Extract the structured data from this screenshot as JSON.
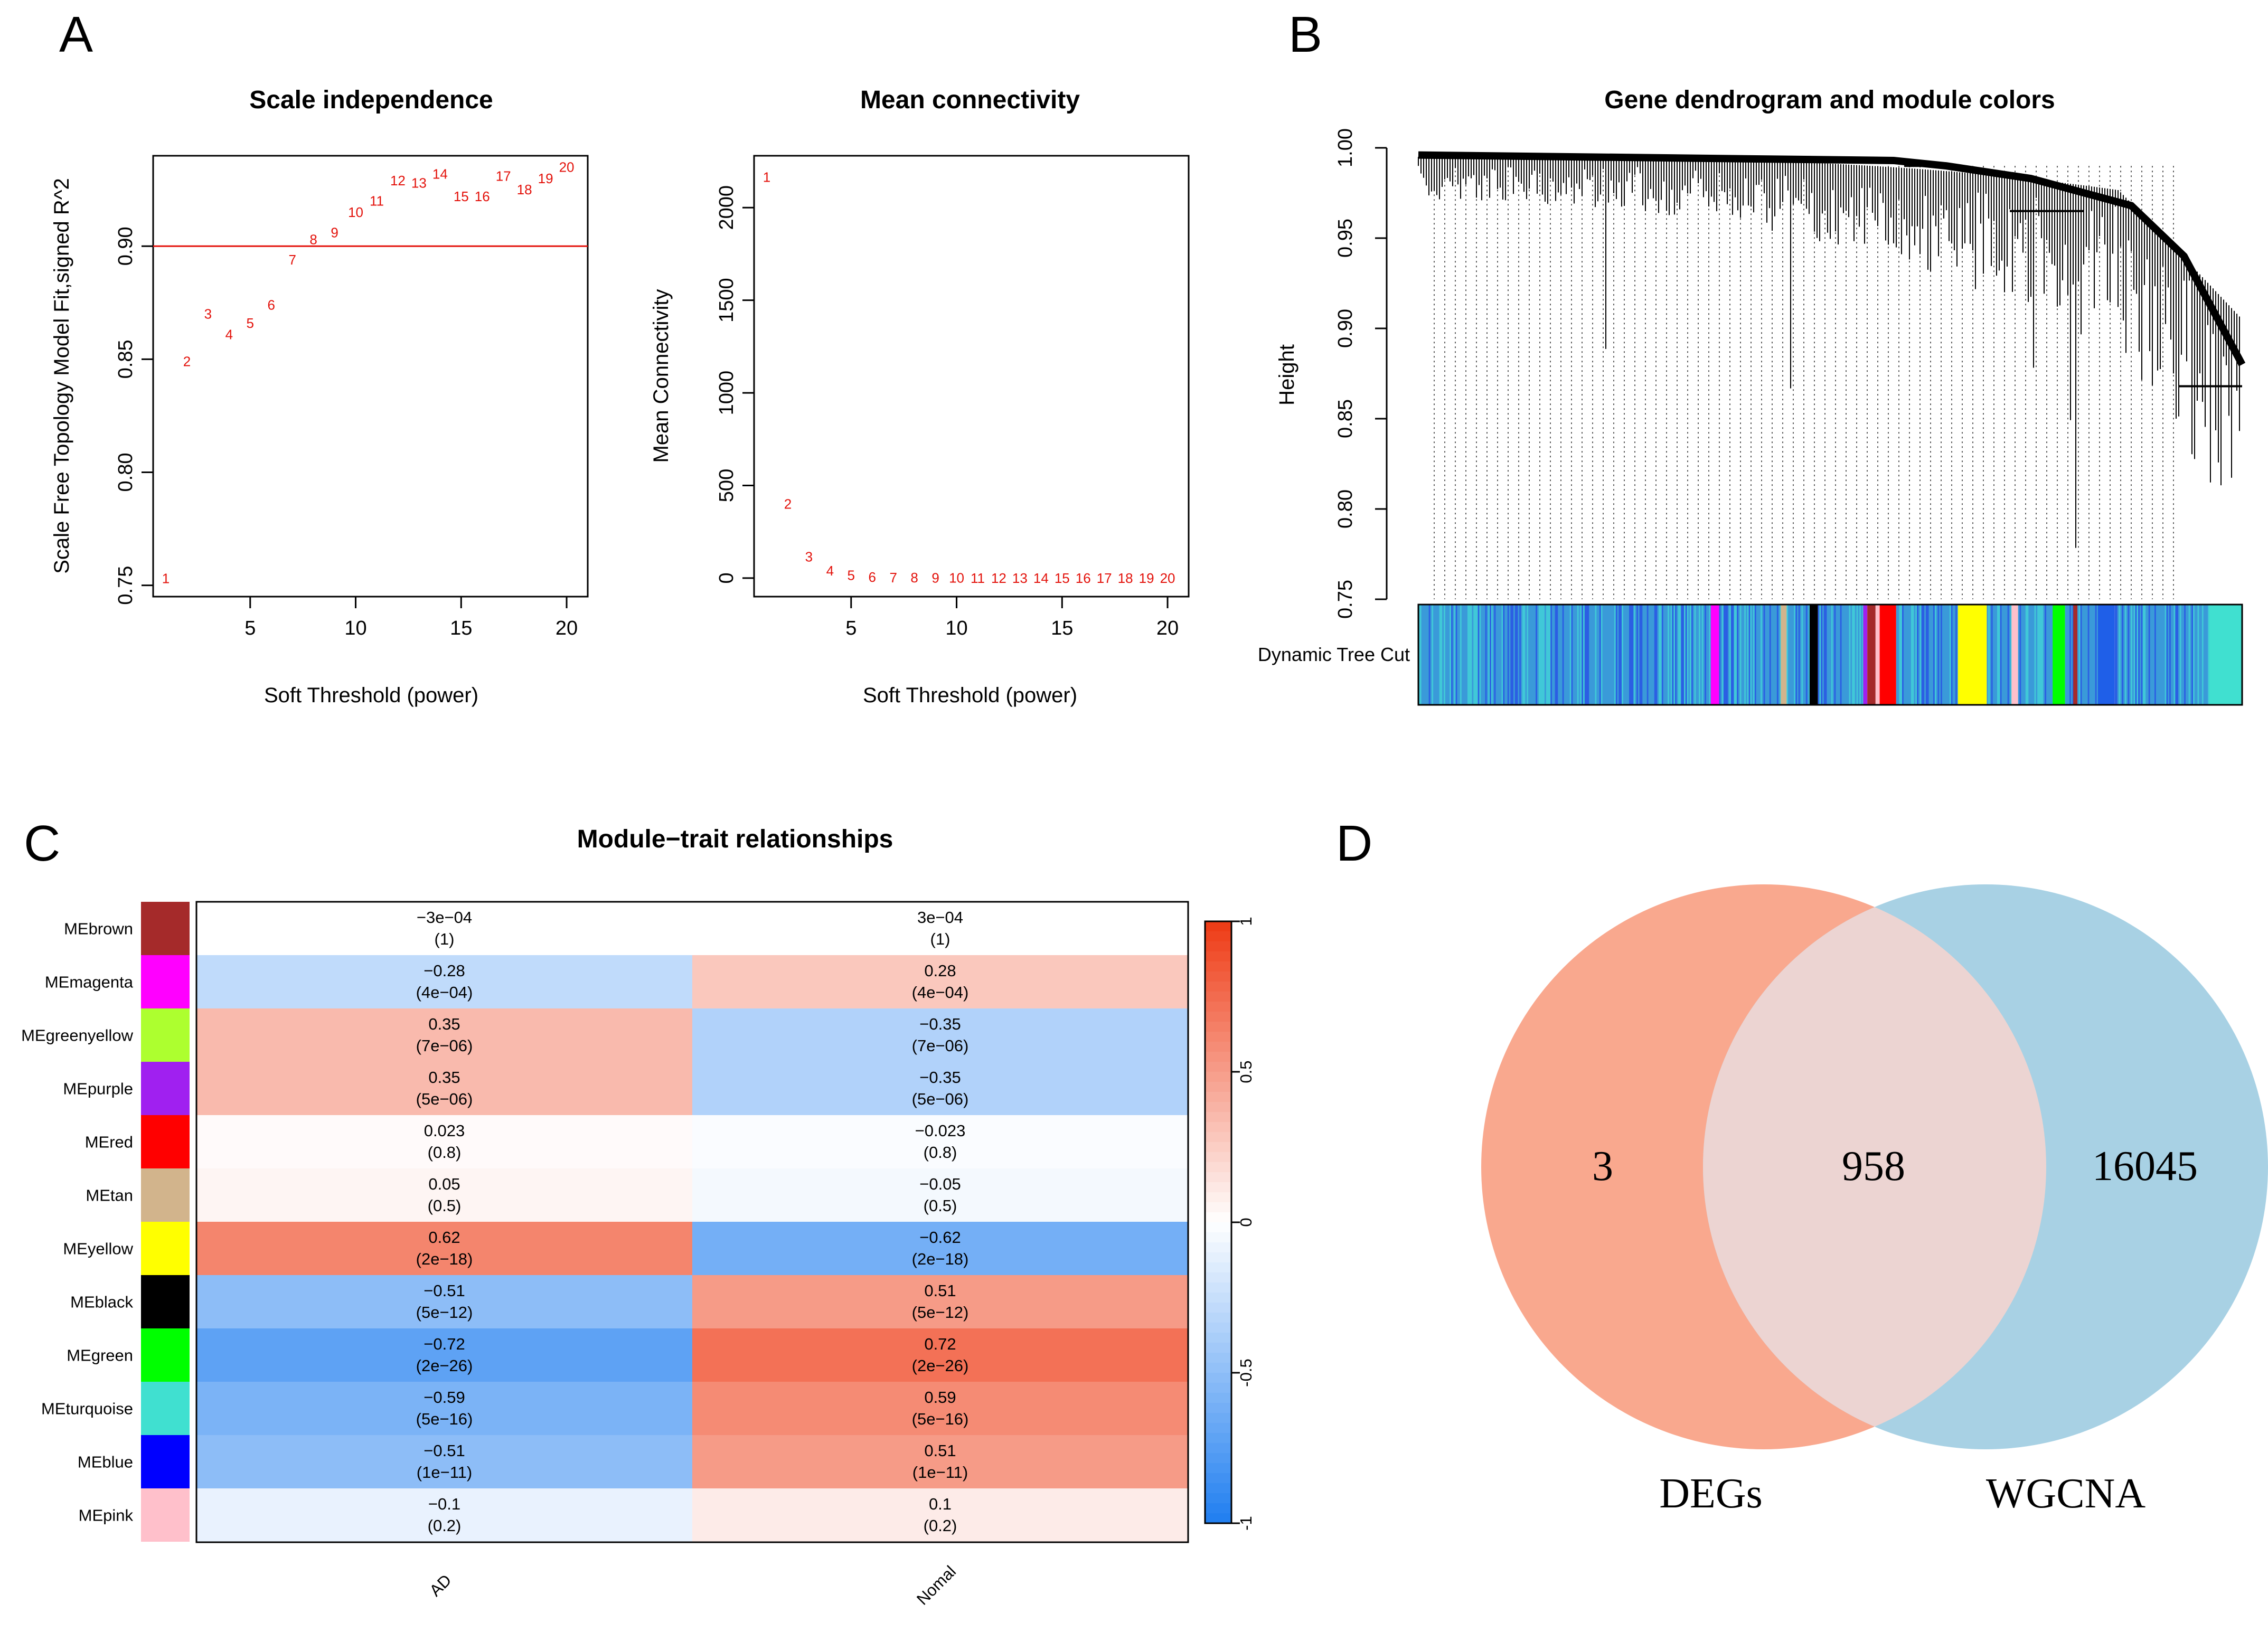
{
  "panels": {
    "a": "A",
    "b": "B",
    "c": "C",
    "d": "D"
  },
  "chart_data": [
    {
      "id": "scale_independence",
      "type": "scatter",
      "title": "Scale independence",
      "xlabel": "Soft Threshold (power)",
      "ylabel": "Scale Free Topology Model Fit,signed R^2",
      "xlim": [
        0.4,
        21.0
      ],
      "ylim": [
        0.745,
        0.94
      ],
      "xticks": [
        5,
        10,
        15,
        20
      ],
      "yticks": [
        0.75,
        0.8,
        0.85,
        0.9
      ],
      "ytick_labels": [
        "0.75",
        "0.80",
        "0.85",
        "0.90"
      ],
      "hline": 0.9,
      "hline_color": "#e3120b",
      "point_color": "#e3120b",
      "x": [
        1,
        2,
        3,
        4,
        5,
        6,
        7,
        8,
        9,
        10,
        11,
        12,
        13,
        14,
        15,
        16,
        17,
        18,
        19,
        20
      ],
      "y": [
        0.753,
        0.849,
        0.87,
        0.861,
        0.866,
        0.874,
        0.894,
        0.903,
        0.906,
        0.915,
        0.92,
        0.929,
        0.928,
        0.932,
        0.922,
        0.922,
        0.931,
        0.925,
        0.93,
        0.935
      ],
      "labels": [
        "1",
        "2",
        "3",
        "4",
        "5",
        "6",
        "7",
        "8",
        "9",
        "10",
        "11",
        "12",
        "13",
        "14",
        "15",
        "16",
        "17",
        "18",
        "19",
        "20"
      ]
    },
    {
      "id": "mean_connectivity",
      "type": "scatter",
      "title": "Mean connectivity",
      "xlabel": "Soft Threshold (power)",
      "ylabel": "Mean Connectivity",
      "xlim": [
        0.4,
        21.0
      ],
      "ylim": [
        -100,
        2280
      ],
      "xticks": [
        5,
        10,
        15,
        20
      ],
      "yticks": [
        0,
        500,
        1000,
        1500,
        2000
      ],
      "ytick_labels": [
        "0",
        "500",
        "1000",
        "1500",
        "2000"
      ],
      "point_color": "#e3120b",
      "x": [
        1,
        2,
        3,
        4,
        5,
        6,
        7,
        8,
        9,
        10,
        11,
        12,
        13,
        14,
        15,
        16,
        17,
        18,
        19,
        20
      ],
      "y": [
        2165,
        400,
        115,
        40,
        15,
        6,
        3,
        2,
        1,
        0.5,
        0.3,
        0.2,
        0.1,
        0.1,
        0.1,
        0.1,
        0.1,
        0.1,
        0.1,
        0.1
      ],
      "labels": [
        "1",
        "2",
        "3",
        "4",
        "5",
        "6",
        "7",
        "8",
        "9",
        "10",
        "11",
        "12",
        "13",
        "14",
        "15",
        "16",
        "17",
        "18",
        "19",
        "20"
      ]
    },
    {
      "id": "gene_dendrogram",
      "type": "dendrogram",
      "title": "Gene dendrogram and module colors",
      "ylabel": "Height",
      "ylim": [
        0.75,
        1.0
      ],
      "yticks": [
        0.75,
        0.8,
        0.85,
        0.9,
        0.95,
        1.0
      ],
      "ytick_labels": [
        "0.75",
        "0.80",
        "0.85",
        "0.90",
        "0.95",
        "1.00"
      ],
      "color_bar_label": "Dynamic Tree Cut",
      "module_colors_in_bar": [
        "turquoise",
        "blue",
        "magenta",
        "greenyellow",
        "tan",
        "black",
        "purple",
        "red",
        "pink",
        "yellow",
        "green",
        "brown"
      ]
    },
    {
      "id": "module_trait",
      "type": "heatmap",
      "title": "Module−trait relationships",
      "columns": [
        "AD",
        "Nomal"
      ],
      "color_scale": {
        "min": -1,
        "max": 1,
        "ticks": [
          "-1",
          "-0.5",
          "0",
          "0.5",
          "1"
        ],
        "low": "#1f7ef0",
        "mid": "#ffffff",
        "high": "#ee3a14"
      },
      "rows": [
        {
          "module": "MEbrown",
          "color": "#a52a2a",
          "values": [
            -0.0003,
            0.0003
          ],
          "labels": [
            "−3e−04",
            "3e−04"
          ],
          "pvalues": [
            "(1)",
            "(1)"
          ]
        },
        {
          "module": "MEmagenta",
          "color": "#ff00ff",
          "values": [
            -0.28,
            0.28
          ],
          "labels": [
            "−0.28",
            "0.28"
          ],
          "pvalues": [
            "(4e−04)",
            "(4e−04)"
          ]
        },
        {
          "module": "MEgreenyellow",
          "color": "#adff2f",
          "values": [
            0.35,
            -0.35
          ],
          "labels": [
            "0.35",
            "−0.35"
          ],
          "pvalues": [
            "(7e−06)",
            "(7e−06)"
          ]
        },
        {
          "module": "MEpurple",
          "color": "#a020f0",
          "values": [
            0.35,
            -0.35
          ],
          "labels": [
            "0.35",
            "−0.35"
          ],
          "pvalues": [
            "(5e−06)",
            "(5e−06)"
          ]
        },
        {
          "module": "MEred",
          "color": "#ff0000",
          "values": [
            0.023,
            -0.023
          ],
          "labels": [
            "0.023",
            "−0.023"
          ],
          "pvalues": [
            "(0.8)",
            "(0.8)"
          ]
        },
        {
          "module": "MEtan",
          "color": "#d2b48c",
          "values": [
            0.05,
            -0.05
          ],
          "labels": [
            "0.05",
            "−0.05"
          ],
          "pvalues": [
            "(0.5)",
            "(0.5)"
          ]
        },
        {
          "module": "MEyellow",
          "color": "#ffff00",
          "values": [
            0.62,
            -0.62
          ],
          "labels": [
            "0.62",
            "−0.62"
          ],
          "pvalues": [
            "(2e−18)",
            "(2e−18)"
          ]
        },
        {
          "module": "MEblack",
          "color": "#000000",
          "values": [
            -0.51,
            0.51
          ],
          "labels": [
            "−0.51",
            "0.51"
          ],
          "pvalues": [
            "(5e−12)",
            "(5e−12)"
          ]
        },
        {
          "module": "MEgreen",
          "color": "#00ff00",
          "values": [
            -0.72,
            0.72
          ],
          "labels": [
            "−0.72",
            "0.72"
          ],
          "pvalues": [
            "(2e−26)",
            "(2e−26)"
          ]
        },
        {
          "module": "MEturquoise",
          "color": "#40e0d0",
          "values": [
            -0.59,
            0.59
          ],
          "labels": [
            "−0.59",
            "0.59"
          ],
          "pvalues": [
            "(5e−16)",
            "(5e−16)"
          ]
        },
        {
          "module": "MEblue",
          "color": "#0000ff",
          "values": [
            -0.51,
            0.51
          ],
          "labels": [
            "−0.51",
            "0.51"
          ],
          "pvalues": [
            "(1e−11)",
            "(1e−11)"
          ]
        },
        {
          "module": "MEpink",
          "color": "#ffc0cb",
          "values": [
            -0.1,
            0.1
          ],
          "labels": [
            "−0.1",
            "0.1"
          ],
          "pvalues": [
            "(0.2)",
            "(0.2)"
          ]
        }
      ]
    },
    {
      "id": "venn",
      "type": "venn",
      "sets": [
        {
          "name": "DEGs",
          "only": "3",
          "color": "#f9a88e"
        },
        {
          "name": "WGCNA",
          "only": "16045",
          "color": "#a8d1e4"
        }
      ],
      "intersection": "958",
      "intersection_color": "#ecd4d2"
    }
  ]
}
